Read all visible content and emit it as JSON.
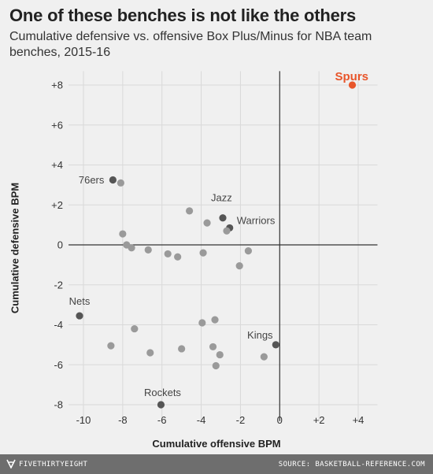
{
  "title": "One of these benches is not like the others",
  "subtitle": "Cumulative defensive vs. offensive Box Plus/Minus for NBA team benches, 2015-16",
  "footer": {
    "brand": "FIVETHIRTYEIGHT",
    "source": "SOURCE: BASKETBALL-REFERENCE.COM",
    "brand_icon": "fivethirtyeight-logo-icon"
  },
  "colors": {
    "background": "#f0f0f0",
    "point": "#9a9a9a",
    "labeled_point": "#555555",
    "highlight": "#e8552a",
    "footer": "#6e6e6e"
  },
  "chart_data": {
    "type": "scatter",
    "xlabel": "Cumulative offensive BPM",
    "ylabel": "Cumulative defensive BPM",
    "xlim": [
      -11,
      4.5
    ],
    "ylim": [
      -8.5,
      8.5
    ],
    "x_ticks": [
      -10,
      -8,
      -6,
      -4,
      -2,
      0,
      2,
      4
    ],
    "x_tick_labels": [
      "-10",
      "-8",
      "-6",
      "-4",
      "-2",
      "0",
      "+2",
      "+4"
    ],
    "y_ticks": [
      -8,
      -6,
      -4,
      -2,
      0,
      2,
      4,
      6,
      8
    ],
    "y_tick_labels": [
      "-8",
      "-6",
      "-4",
      "-2",
      "0",
      "+2",
      "+4",
      "+6",
      "+8"
    ],
    "grid": true,
    "zero_lines": true,
    "points": [
      {
        "x": 3.7,
        "y": 8.0,
        "label": "Spurs",
        "highlight": true
      },
      {
        "x": -8.5,
        "y": 3.25,
        "label": "76ers"
      },
      {
        "x": -8.1,
        "y": 3.1
      },
      {
        "x": -4.6,
        "y": 1.7
      },
      {
        "x": -2.9,
        "y": 1.35,
        "label": "Jazz"
      },
      {
        "x": -3.7,
        "y": 1.1
      },
      {
        "x": -2.55,
        "y": 0.85,
        "label": "Warriors"
      },
      {
        "x": -2.7,
        "y": 0.7
      },
      {
        "x": -8.0,
        "y": 0.55
      },
      {
        "x": -7.8,
        "y": 0.0
      },
      {
        "x": -7.55,
        "y": -0.15
      },
      {
        "x": -6.7,
        "y": -0.25
      },
      {
        "x": -5.7,
        "y": -0.45
      },
      {
        "x": -5.2,
        "y": -0.6
      },
      {
        "x": -3.9,
        "y": -0.4
      },
      {
        "x": -1.6,
        "y": -0.3
      },
      {
        "x": -2.05,
        "y": -1.05
      },
      {
        "x": -10.2,
        "y": -3.55,
        "label": "Nets"
      },
      {
        "x": -7.4,
        "y": -4.2
      },
      {
        "x": -3.95,
        "y": -3.9
      },
      {
        "x": -3.3,
        "y": -3.75
      },
      {
        "x": -8.6,
        "y": -5.05
      },
      {
        "x": -6.6,
        "y": -5.4
      },
      {
        "x": -5.0,
        "y": -5.2
      },
      {
        "x": -3.4,
        "y": -5.1
      },
      {
        "x": -3.05,
        "y": -5.5
      },
      {
        "x": -3.25,
        "y": -6.05
      },
      {
        "x": -0.8,
        "y": -5.6
      },
      {
        "x": -0.2,
        "y": -5.0,
        "label": "Kings"
      },
      {
        "x": -6.05,
        "y": -8.0,
        "label": "Rockets"
      }
    ]
  }
}
